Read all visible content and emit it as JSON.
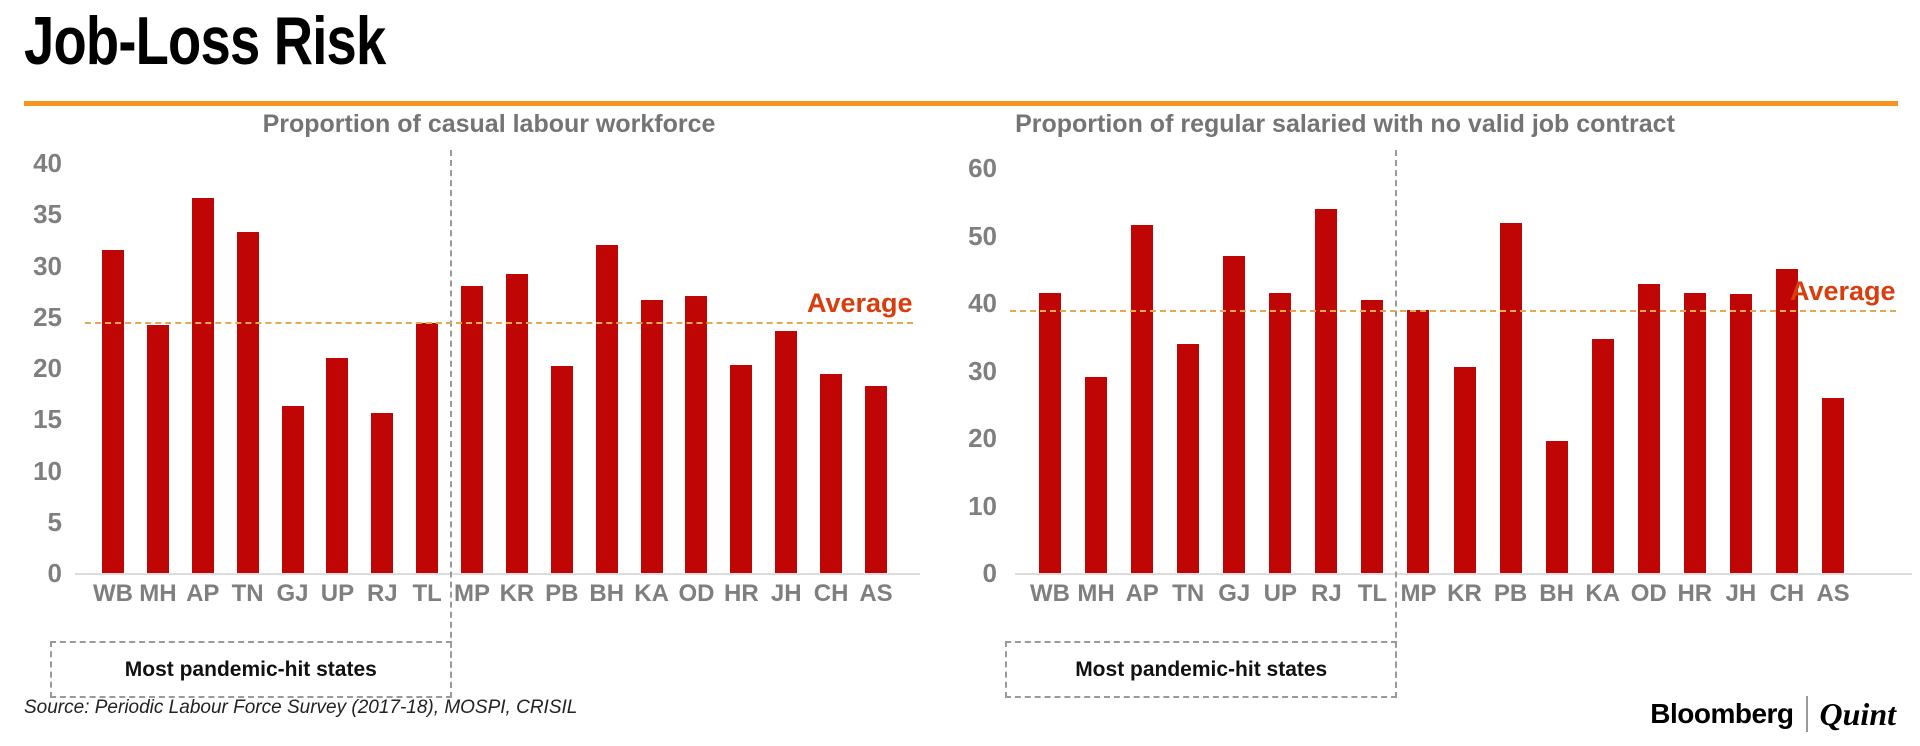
{
  "page": {
    "title": "Job-Loss Risk",
    "source": "Source: Periodic Labour Force Survey (2017-18), MOSPI, CRISIL",
    "logo": {
      "bloomberg": "Bloomberg",
      "quint": "Quint"
    }
  },
  "colors": {
    "bar": "#c00505",
    "accent_rule": "#f7941d",
    "average_line": "#e3aa56",
    "average_text": "#d93d0d",
    "axis_text": "#7f7f7f",
    "chart_title_text": "#747474",
    "dashed_guide": "#9a9a9a",
    "baseline": "#dcdcdc"
  },
  "annotations": {
    "average_label": "Average",
    "pandemic_box_label": "Most pandemic-hit states"
  },
  "chart_data": [
    {
      "type": "bar",
      "title": "Proportion of casual labour workforce",
      "categories": [
        "WB",
        "MH",
        "AP",
        "TN",
        "GJ",
        "UP",
        "RJ",
        "TL",
        "MP",
        "KR",
        "PB",
        "BH",
        "KA",
        "OD",
        "HR",
        "JH",
        "CH",
        "AS"
      ],
      "values": [
        31.5,
        24.2,
        36.6,
        33.3,
        16.3,
        21.0,
        15.6,
        24.4,
        28.0,
        29.2,
        20.2,
        32.0,
        26.6,
        27.0,
        20.3,
        23.6,
        19.4,
        18.2
      ],
      "average": 24.5,
      "ylim": [
        0,
        40
      ],
      "yticks": [
        0,
        5,
        10,
        15,
        20,
        25,
        30,
        35,
        40
      ],
      "separator_after_index": 7,
      "group_label": "Most pandemic-hit states",
      "average_label": "Average",
      "legend": "none",
      "grid": false
    },
    {
      "type": "bar",
      "title": "Proportion of regular salaried with no valid job contract",
      "categories": [
        "WB",
        "MH",
        "AP",
        "TN",
        "GJ",
        "UP",
        "RJ",
        "TL",
        "MP",
        "KR",
        "PB",
        "BH",
        "KA",
        "OD",
        "HR",
        "JH",
        "CH",
        "AS"
      ],
      "values": [
        41.5,
        29.0,
        51.5,
        34.0,
        47.0,
        41.5,
        54.0,
        40.5,
        39.0,
        30.5,
        51.8,
        19.5,
        34.7,
        42.8,
        41.5,
        41.3,
        45.0,
        26.0
      ],
      "average": 39.0,
      "ylim": [
        0,
        60
      ],
      "yticks": [
        0,
        10,
        20,
        30,
        40,
        50,
        60
      ],
      "separator_after_index": 7,
      "group_label": "Most pandemic-hit states",
      "average_label": "Average",
      "legend": "none",
      "grid": false
    }
  ]
}
